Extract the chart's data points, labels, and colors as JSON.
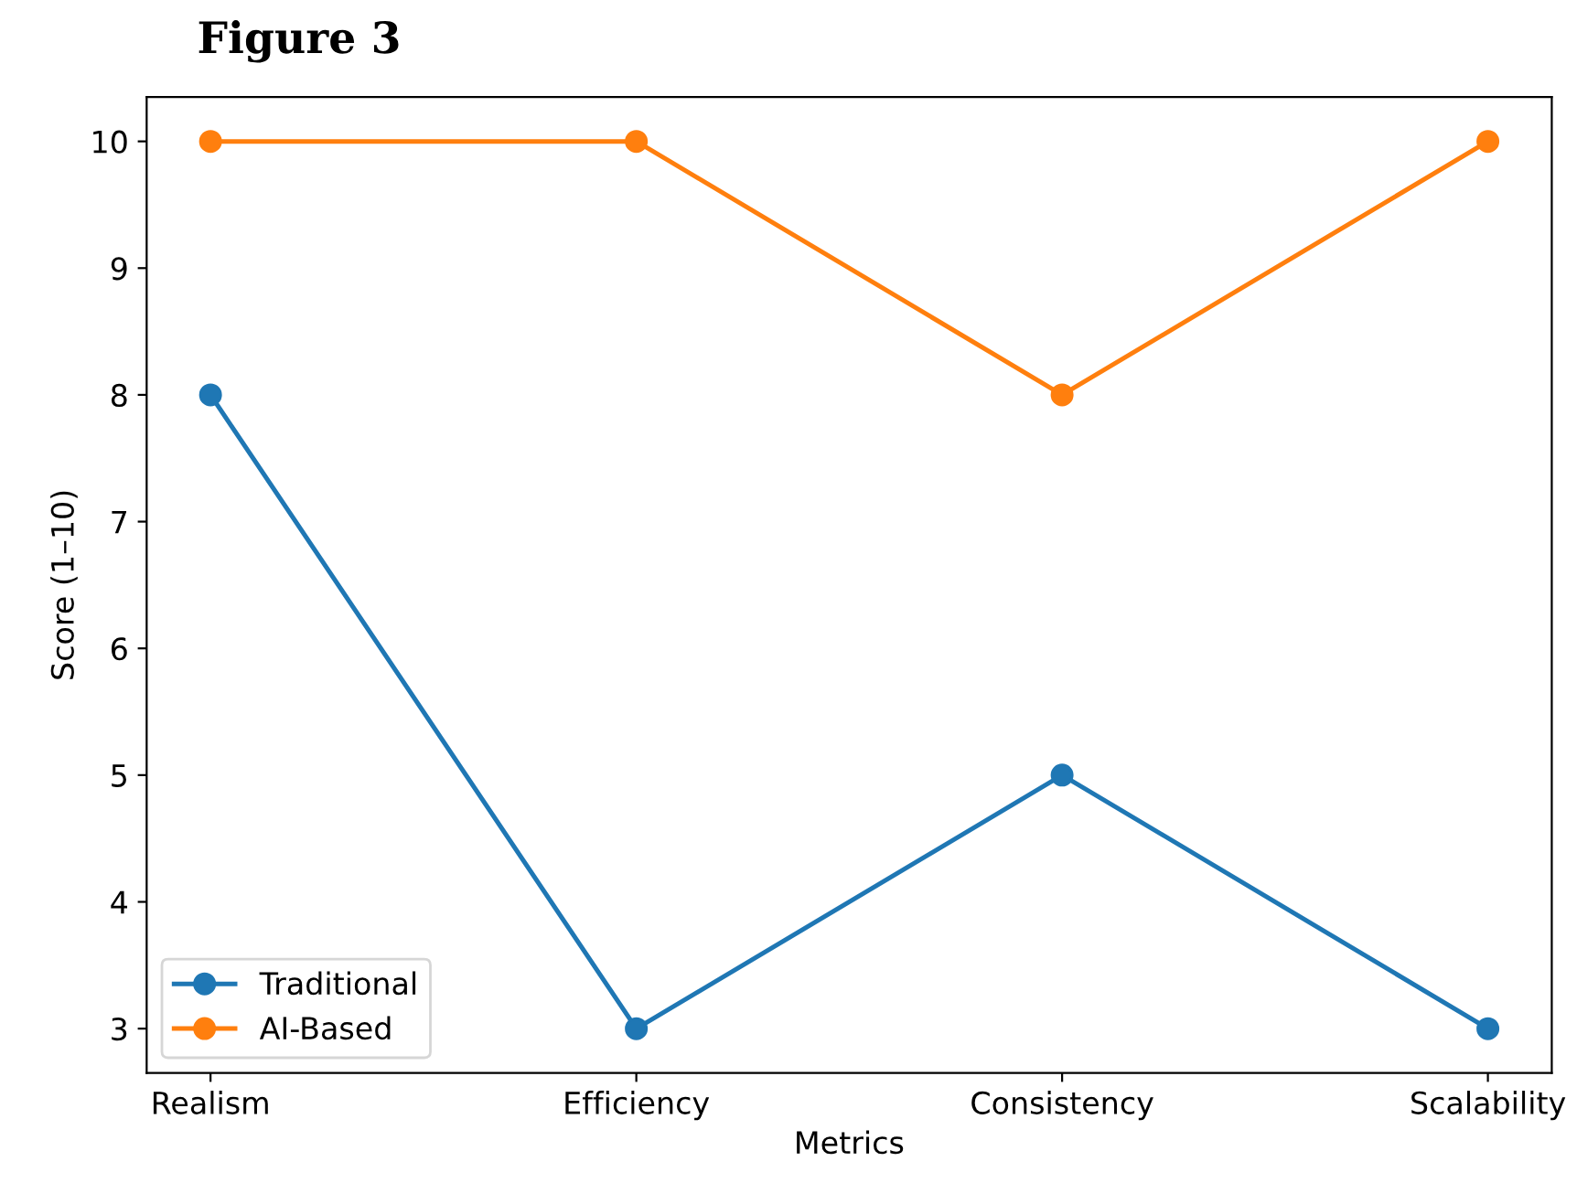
{
  "chart_data": {
    "type": "line",
    "title": "Figure 3",
    "xlabel": "Metrics",
    "ylabel": "Score (1–10)",
    "categories": [
      "Realism",
      "Efficiency",
      "Consistency",
      "Scalability"
    ],
    "series": [
      {
        "name": "Traditional",
        "color": "#1f77b4",
        "values": [
          8,
          3,
          5,
          3
        ]
      },
      {
        "name": "AI-Based",
        "color": "#ff7f0e",
        "values": [
          10,
          10,
          8,
          10
        ]
      }
    ],
    "ylim": [
      2.65,
      10.35
    ],
    "yticks": [
      3,
      4,
      5,
      6,
      7,
      8,
      9,
      10
    ],
    "grid": false,
    "legend": "bottom left",
    "marker": "circle",
    "line_style": "solid"
  }
}
